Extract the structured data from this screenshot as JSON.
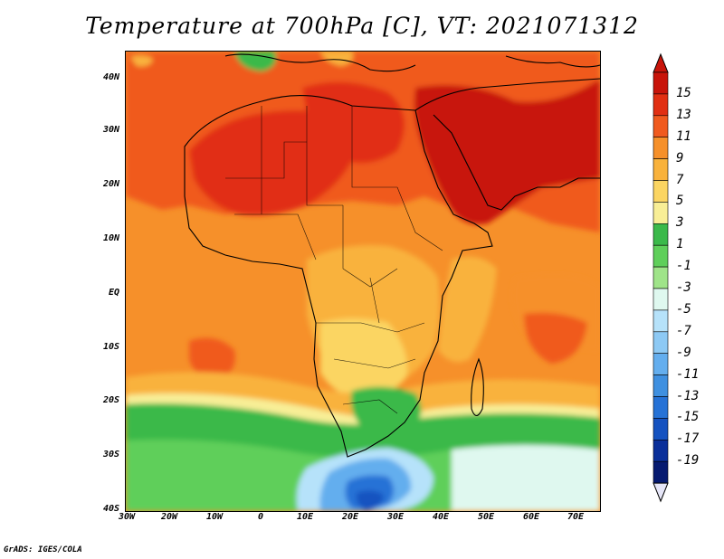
{
  "title": "Temperature at 700hPa [C], VT: 2021071312",
  "footer": "GrADS: IGES/COLA",
  "map": {
    "lat_labels": [
      "40N",
      "30N",
      "20N",
      "10N",
      "EQ",
      "10S",
      "20S",
      "30S",
      "40S"
    ],
    "lon_labels": [
      "30W",
      "20W",
      "10W",
      "0",
      "10E",
      "20E",
      "30E",
      "40E",
      "50E",
      "60E",
      "70E"
    ],
    "lon_range": [
      -30,
      75
    ],
    "lat_range": [
      -40,
      45
    ]
  },
  "colorbar": {
    "labels": [
      "15",
      "13",
      "11",
      "9",
      "7",
      "5",
      "3",
      "1",
      "-1",
      "-3",
      "-5",
      "-7",
      "-9",
      "-11",
      "-13",
      "-15",
      "-17",
      "-19"
    ],
    "colors": [
      "#c8140a",
      "#e12f12",
      "#f05a1e",
      "#f6902a",
      "#f9b23c",
      "#fbd562",
      "#f8ee96",
      "#3bb94a",
      "#5fcf5a",
      "#9fe489",
      "#dff8ef",
      "#b6e2fa",
      "#8dc9f4",
      "#64aeee",
      "#3f90e0",
      "#2672d6",
      "#1552c0",
      "#0a2f9a",
      "#061a70"
    ],
    "over_color": "#c8140a",
    "under_color": "#e6e6f8"
  }
}
